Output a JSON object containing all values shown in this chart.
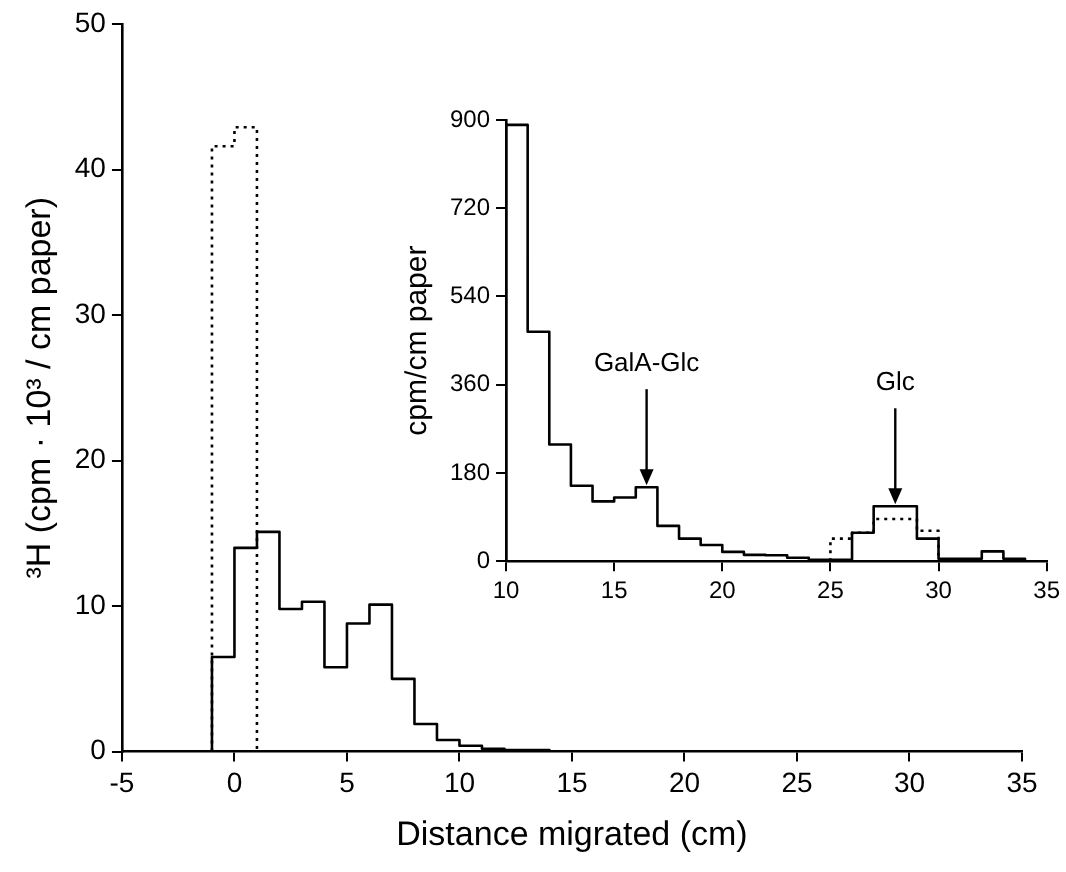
{
  "chart_data": [
    {
      "type": "step",
      "xlabel": "Distance migrated (cm)",
      "ylabel": "³H (cpm · 10³ / cm paper)",
      "series": [
        {
          "color": "#000000",
          "line_style": "solid",
          "x": [
            -1,
            -1,
            0,
            1,
            2,
            3,
            4,
            5,
            6,
            7,
            8,
            9,
            10,
            11,
            12,
            13,
            14
          ],
          "values": [
            0,
            6.5,
            14.0,
            15.1,
            9.8,
            10.3,
            5.8,
            8.8,
            10.1,
            5.0,
            1.9,
            0.8,
            0.4,
            0.2,
            0.1,
            0.1,
            0
          ]
        },
        {
          "color": "#000000",
          "line_style": "dotted",
          "x": [
            -1,
            -1,
            0,
            1
          ],
          "values": [
            0,
            41.6,
            42.9,
            0
          ]
        }
      ],
      "xlim": [
        -5,
        35
      ],
      "xticks": [
        -5,
        0,
        5,
        10,
        15,
        20,
        25,
        30,
        35
      ],
      "ylim": [
        0,
        50
      ],
      "yticks": [
        0,
        10,
        20,
        30,
        40,
        50
      ],
      "grid": false
    },
    {
      "type": "step",
      "ylabel": "cpm/cm paper",
      "series": [
        {
          "color": "#000000",
          "line_style": "solid",
          "x": [
            10,
            10,
            11,
            12,
            13,
            14,
            15,
            16,
            17,
            18,
            19,
            20,
            21,
            22,
            23,
            24,
            25,
            26,
            27,
            28,
            29,
            30,
            31,
            32,
            33,
            34
          ],
          "values": [
            0,
            890,
            468,
            238,
            154,
            122,
            130,
            151,
            72,
            46,
            33,
            19,
            13,
            12,
            7,
            3,
            3,
            58,
            112,
            112,
            46,
            5,
            5,
            20,
            5,
            0
          ]
        },
        {
          "color": "#000000",
          "line_style": "dotted",
          "x": [
            25,
            25,
            26,
            27,
            28,
            29,
            30
          ],
          "values": [
            0,
            46,
            58,
            86,
            86,
            62,
            0
          ]
        }
      ],
      "annotations": [
        {
          "text": "GalA-Glc",
          "x": 16.5,
          "y": 151
        },
        {
          "text": "Glc",
          "x": 28,
          "y": 112
        }
      ],
      "xlim": [
        10,
        35
      ],
      "xticks": [
        10,
        15,
        20,
        25,
        30,
        35
      ],
      "ylim": [
        0,
        900
      ],
      "yticks": [
        0,
        180,
        360,
        540,
        720,
        900
      ],
      "grid": false
    }
  ]
}
